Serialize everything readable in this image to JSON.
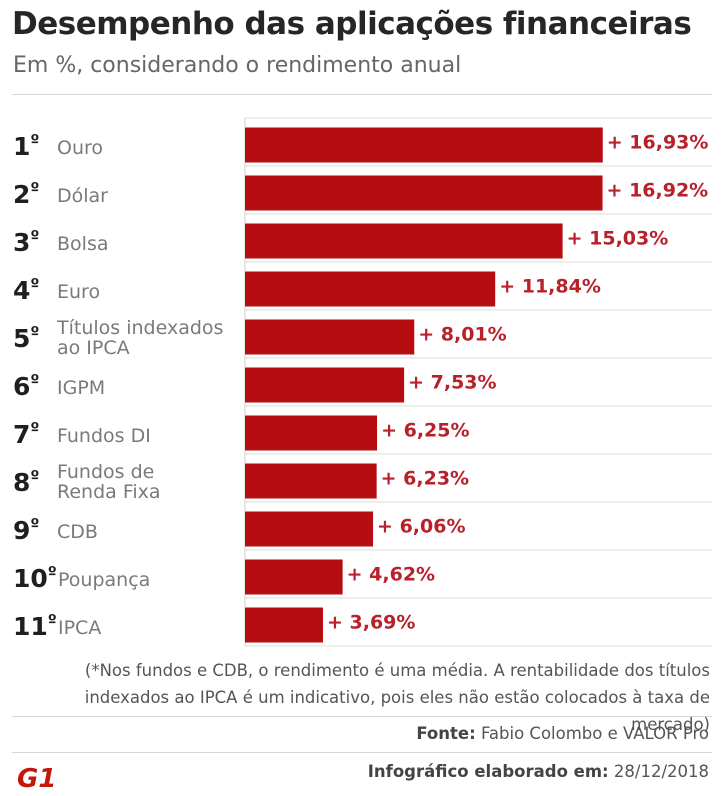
{
  "header": {
    "title": "Desempenho das aplicações financeiras",
    "subtitle": "Em %, considerando o rendimento anual"
  },
  "chart_data": {
    "type": "bar",
    "orientation": "horizontal",
    "title": "Desempenho das aplicações financeiras",
    "subtitle": "Em %, considerando o rendimento anual",
    "unit": "%",
    "categories": [
      "Ouro",
      "Dólar",
      "Bolsa",
      "Euro",
      "Títulos indexados ao IPCA",
      "IGPM",
      "Fundos DI",
      "Fundos de Renda Fixa",
      "CDB",
      "Poupança",
      "IPCA"
    ],
    "category_lines": [
      [
        "Ouro"
      ],
      [
        "Dólar"
      ],
      [
        "Bolsa"
      ],
      [
        "Euro"
      ],
      [
        "Títulos indexados",
        "ao IPCA"
      ],
      [
        "IGPM"
      ],
      [
        "Fundos DI"
      ],
      [
        "Fundos de",
        "Renda Fixa"
      ],
      [
        "CDB"
      ],
      [
        "Poupança"
      ],
      [
        "IPCA"
      ]
    ],
    "ranks": [
      "1",
      "2",
      "3",
      "4",
      "5",
      "6",
      "7",
      "8",
      "9",
      "10",
      "11"
    ],
    "rank_suffix": "º",
    "values": [
      16.93,
      16.92,
      15.03,
      11.84,
      8.01,
      7.53,
      6.25,
      6.23,
      6.06,
      4.62,
      3.69
    ],
    "value_labels": [
      "+ 16,93%",
      "+ 16,92%",
      "+ 15,03%",
      "+ 11,84%",
      "+ 8,01%",
      "+ 7,53%",
      "+ 6,25%",
      "+ 6,23%",
      "+ 6,06%",
      "+ 4,62%",
      "+ 3,69%"
    ],
    "xlim": [
      0,
      22.1
    ],
    "bar_color": "#b50d12",
    "value_color": "#b8202a"
  },
  "footer": {
    "note_line1": "(*Nos fundos e CDB, o rendimento é uma média. A rentabilidade dos títulos",
    "note_line2": "indexados ao IPCA é um indicativo, pois eles não estão colocados à taxa de mercado)",
    "source_label": "Fonte:",
    "source_text": "Fabio Colombo e VALOR Pro",
    "credit_label": "Infográfico elaborado em:",
    "credit_date": "28/12/2018",
    "logo_text": "G1",
    "logo_color": "#c4170c"
  }
}
